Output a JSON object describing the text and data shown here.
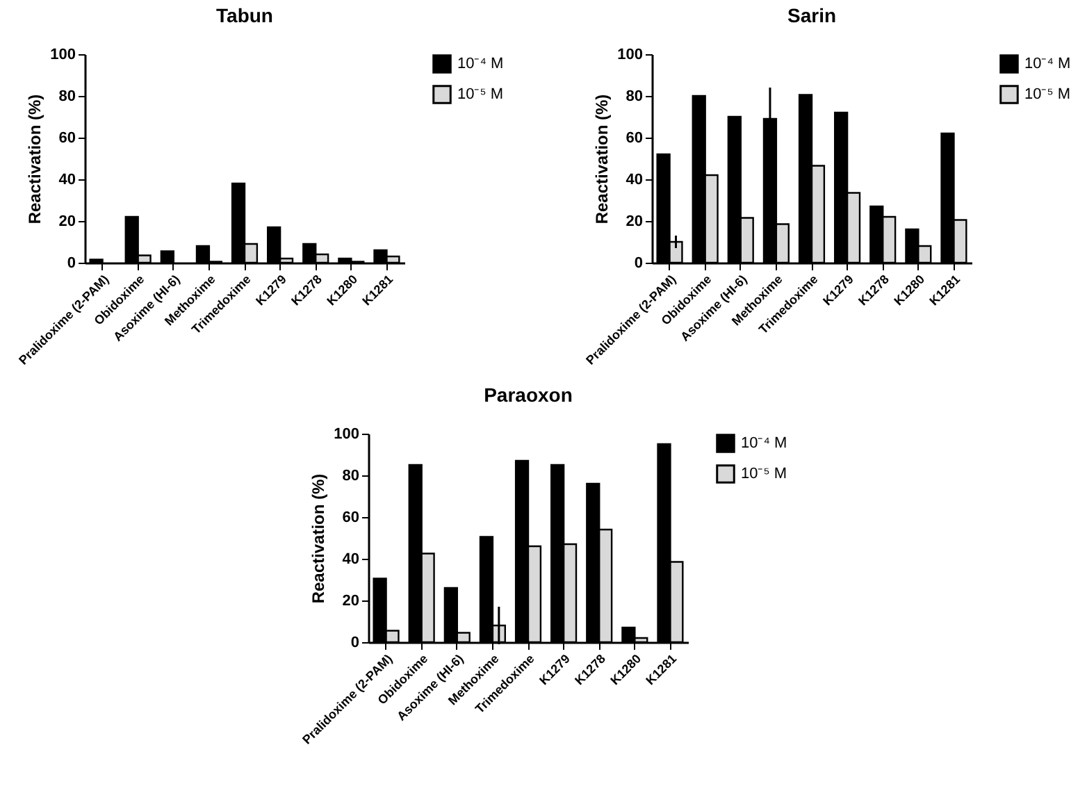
{
  "chart_data": [
    {
      "type": "bar",
      "title": "Tabun",
      "ylabel": "Reactivation (%)",
      "categories": [
        "Pralidoxime (2-PAM)",
        "Obidoxime",
        "Asoxime (HI-6)",
        "Methoxime",
        "Trimedoxime",
        "K1279",
        "K1278",
        "K1280",
        "K1281"
      ],
      "series": [
        {
          "name": "10⁻⁴ M",
          "color": "#000000",
          "values": [
            1.5,
            22,
            5.5,
            8,
            38,
            17,
            9,
            2,
            6
          ]
        },
        {
          "name": "10⁻⁵ M",
          "color": "#d9d9d9",
          "values": [
            null,
            3.5,
            null,
            0.5,
            9,
            2,
            4,
            0.5,
            3
          ]
        }
      ],
      "ylim": [
        0,
        100
      ],
      "yticks": [
        0,
        20,
        40,
        60,
        80,
        100
      ],
      "grid": false,
      "legend": "right"
    },
    {
      "type": "bar",
      "title": "Sarin",
      "ylabel": "Reactivation (%)",
      "categories": [
        "Pralidoxime (2-PAM)",
        "Obidoxime",
        "Asoxime (HI-6)",
        "Methoxime",
        "Trimedoxime",
        "K1279",
        "K1278",
        "K1280",
        "K1281"
      ],
      "series": [
        {
          "name": "10⁻⁴ M",
          "color": "#000000",
          "values": [
            52,
            80,
            70,
            69,
            80.5,
            72,
            27,
            16,
            62
          ],
          "errors": [
            null,
            null,
            null,
            15,
            null,
            null,
            null,
            null,
            null
          ]
        },
        {
          "name": "10⁻⁵ M",
          "color": "#d9d9d9",
          "values": [
            10,
            42,
            21.5,
            18.5,
            46.5,
            33.5,
            22,
            8,
            20.5
          ],
          "errors": [
            3,
            null,
            null,
            null,
            null,
            null,
            null,
            null,
            null
          ]
        }
      ],
      "ylim": [
        0,
        100
      ],
      "yticks": [
        0,
        20,
        40,
        60,
        80,
        100
      ],
      "grid": false,
      "legend": "right"
    },
    {
      "type": "bar",
      "title": "Paraoxon",
      "ylabel": "Reactivation (%)",
      "categories": [
        "Pralidoxime (2-PAM)",
        "Obidoxime",
        "Asoxime (HI-6)",
        "Methoxime",
        "Trimedoxime",
        "K1279",
        "K1278",
        "K1280",
        "K1281"
      ],
      "series": [
        {
          "name": "10⁻⁴ M",
          "color": "#000000",
          "values": [
            30.5,
            85,
            26,
            50.5,
            87,
            85,
            76,
            7,
            95
          ]
        },
        {
          "name": "10⁻⁵ M",
          "color": "#d9d9d9",
          "values": [
            5.5,
            42.5,
            4.5,
            8,
            46,
            47,
            54,
            2,
            38.5
          ],
          "errors": [
            null,
            null,
            null,
            9,
            null,
            null,
            null,
            null,
            null
          ]
        }
      ],
      "ylim": [
        0,
        100
      ],
      "yticks": [
        0,
        20,
        40,
        60,
        80,
        100
      ],
      "grid": false,
      "legend": "right"
    }
  ]
}
